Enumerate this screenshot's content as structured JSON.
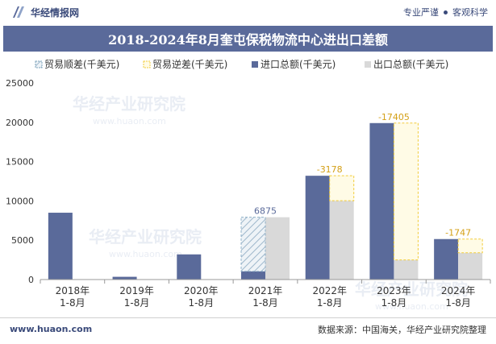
{
  "header": {
    "brand_name": "华经情报网",
    "tag1": "专业严谨",
    "tag2": "客观科学"
  },
  "title": "2018-2024年8月奎屯保税物流中心进出口差额",
  "watermark": "华经产业研究院",
  "watermark_url": "www.huaon.com",
  "footer": {
    "website": "www.huaon.com",
    "source": "数据来源：中国海关，华经产业研究院整理"
  },
  "colors": {
    "import": "#5a6a9a",
    "export": "#d9d9d9",
    "surplus": "#7aa0b8",
    "deficit": "#f2cc3a",
    "title_bg": "#5a6a9a"
  },
  "chart_data": {
    "type": "bar",
    "categories": [
      "2018年\n1-8月",
      "2019年\n1-8月",
      "2020年\n1-8月",
      "2021年\n1-8月",
      "2022年\n1-8月",
      "2023年\n1-8月",
      "2024年\n1-8月"
    ],
    "series": [
      {
        "name": "进口总额(千美元)",
        "values": [
          8500,
          350,
          3200,
          1050,
          13200,
          19900,
          5150
        ]
      },
      {
        "name": "出口总额(千美元)",
        "values": [
          0,
          0,
          0,
          7925,
          10022,
          2495,
          3403
        ]
      }
    ],
    "balance": {
      "surplus_name": "贸易顺差(千美元)",
      "deficit_name": "贸易逆差(千美元)",
      "values": [
        null,
        null,
        null,
        6875,
        -3178,
        -17405,
        -1747
      ],
      "labels": [
        "",
        "",
        "",
        "6875",
        "-3178",
        "-17405",
        "-1747"
      ]
    },
    "ylim": [
      0,
      25000
    ],
    "yticks": [
      "0",
      "5000",
      "10000",
      "15000",
      "20000",
      "25000"
    ],
    "ytick_values": [
      0,
      5000,
      10000,
      15000,
      20000,
      25000
    ],
    "legend_position": "top-right",
    "grid": false
  }
}
